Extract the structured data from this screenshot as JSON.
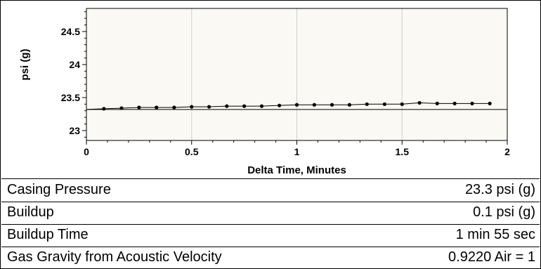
{
  "chart_data": {
    "type": "scatter",
    "title": "",
    "xlabel": "Delta Time, Minutes",
    "ylabel": "psi (g)",
    "xlim": [
      0,
      2
    ],
    "ylim": [
      22.85,
      24.85
    ],
    "x_ticks": [
      {
        "v": 0,
        "label": "0"
      },
      {
        "v": 0.5,
        "label": "0.5"
      },
      {
        "v": 1,
        "label": "1"
      },
      {
        "v": 1.5,
        "label": "1.5"
      },
      {
        "v": 2,
        "label": "2"
      }
    ],
    "y_ticks": [
      {
        "v": 23,
        "label": "23"
      },
      {
        "v": 23.5,
        "label": "23.5"
      },
      {
        "v": 24,
        "label": "24"
      },
      {
        "v": 24.5,
        "label": "24.5"
      }
    ],
    "grid": "vertical",
    "baseline": 23.32,
    "points": [
      {
        "x": 0.0,
        "y": 23.32
      },
      {
        "x": 0.083,
        "y": 23.33
      },
      {
        "x": 0.167,
        "y": 23.34
      },
      {
        "x": 0.25,
        "y": 23.35
      },
      {
        "x": 0.333,
        "y": 23.35
      },
      {
        "x": 0.417,
        "y": 23.35
      },
      {
        "x": 0.5,
        "y": 23.36
      },
      {
        "x": 0.583,
        "y": 23.36
      },
      {
        "x": 0.667,
        "y": 23.37
      },
      {
        "x": 0.75,
        "y": 23.37
      },
      {
        "x": 0.833,
        "y": 23.37
      },
      {
        "x": 0.917,
        "y": 23.38
      },
      {
        "x": 1.0,
        "y": 23.39
      },
      {
        "x": 1.083,
        "y": 23.39
      },
      {
        "x": 1.167,
        "y": 23.39
      },
      {
        "x": 1.25,
        "y": 23.39
      },
      {
        "x": 1.333,
        "y": 23.4
      },
      {
        "x": 1.417,
        "y": 23.4
      },
      {
        "x": 1.5,
        "y": 23.4
      },
      {
        "x": 1.583,
        "y": 23.42
      },
      {
        "x": 1.667,
        "y": 23.41
      },
      {
        "x": 1.75,
        "y": 23.41
      },
      {
        "x": 1.833,
        "y": 23.41
      },
      {
        "x": 1.917,
        "y": 23.41
      }
    ],
    "colors": {
      "plot_bg": "#faf9f4",
      "grid": "#d0d0d0",
      "series": "#000000"
    }
  },
  "summary": {
    "rows": [
      {
        "label": "Casing Pressure",
        "value": "23.3 psi (g)"
      },
      {
        "label": "Buildup",
        "value": "0.1 psi (g)"
      },
      {
        "label": "Buildup Time",
        "value": "1 min 55 sec"
      },
      {
        "label": "Gas Gravity from Acoustic Velocity",
        "value": "0.9220 Air = 1"
      }
    ]
  }
}
